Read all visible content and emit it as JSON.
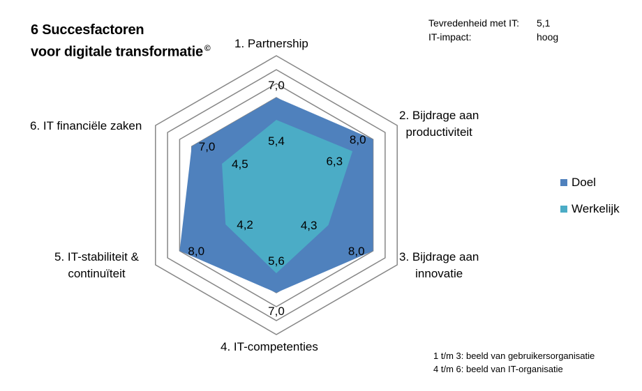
{
  "header": {
    "title_line1": "6 Succesfactoren",
    "title_line2": "voor digitale transformatie",
    "title_mark": "©"
  },
  "info": {
    "label1": "Tevredenheid met IT:",
    "value1": "5,1",
    "label2": "IT-impact:",
    "value2": "hoog"
  },
  "footnote": {
    "line1": "1 t/m 3: beeld van gebruikersorganisatie",
    "line2": "4 t/m 6: beeld van IT-organisatie"
  },
  "chart_data": {
    "type": "radar",
    "axes": [
      [
        "1. Partnership"
      ],
      [
        "2. Bijdrage aan",
        "productiviteit"
      ],
      [
        "3. Bijdrage aan",
        "innovatie"
      ],
      [
        "4. IT-competenties"
      ],
      [
        "5. IT-stabiliteit &",
        "continuïteit"
      ],
      [
        "6. IT financiële zaken"
      ]
    ],
    "rlim": [
      0,
      10
    ],
    "grid_levels": [
      7,
      8,
      9,
      10
    ],
    "series": [
      {
        "name": "Doel",
        "color": "#4F81BD",
        "values": [
          7.0,
          8.0,
          8.0,
          7.0,
          8.0,
          7.0
        ],
        "labels": [
          "7,0",
          "8,0",
          "8,0",
          "7,0",
          "8,0",
          "7,0"
        ]
      },
      {
        "name": "Werkelijk",
        "color": "#4BACC6",
        "values": [
          5.4,
          6.3,
          4.3,
          5.6,
          4.2,
          4.5
        ],
        "labels": [
          "5,4",
          "6,3",
          "4,3",
          "5,6",
          "4,2",
          "4,5"
        ]
      }
    ],
    "legend_position": "right"
  }
}
